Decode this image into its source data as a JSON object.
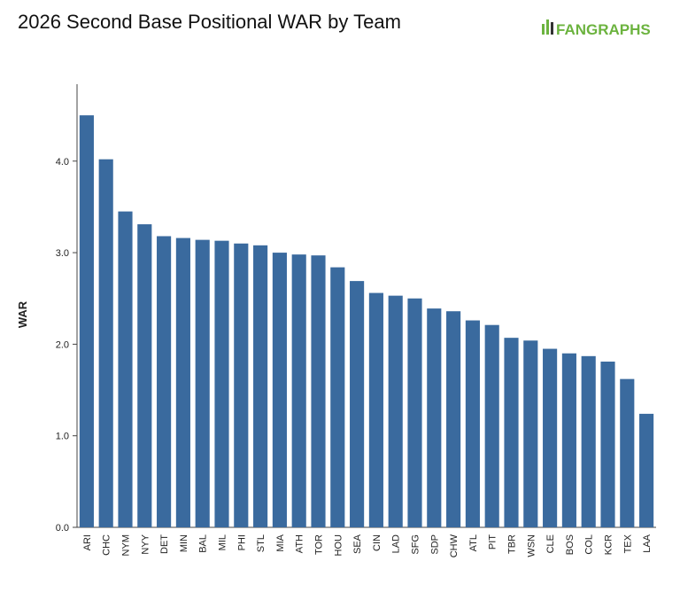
{
  "chart_data": {
    "type": "bar",
    "title": "2026 Second Base Positional WAR by Team",
    "logo": "FANGRAPHS",
    "y_label": "WAR",
    "categories": [
      "ARI",
      "CHC",
      "NYM",
      "NYY",
      "DET",
      "MIN",
      "BAL",
      "MIL",
      "PHI",
      "STL",
      "MIA",
      "ATH",
      "TOR",
      "HOU",
      "SEA",
      "CIN",
      "LAD",
      "SFG",
      "SDP",
      "CHW",
      "ATL",
      "PIT",
      "TBR",
      "WSN",
      "CLE",
      "BOS",
      "COL",
      "KCR",
      "TEX",
      "LAA"
    ],
    "values": [
      4.5,
      4.02,
      3.45,
      3.31,
      3.18,
      3.16,
      3.14,
      3.13,
      3.1,
      3.08,
      3.0,
      2.98,
      2.97,
      2.84,
      2.69,
      2.56,
      2.53,
      2.5,
      2.39,
      2.36,
      2.26,
      2.21,
      2.07,
      2.04,
      1.95,
      1.9,
      1.87,
      1.81,
      1.62,
      1.24
    ],
    "color": "#3a6a9e",
    "ylim": [
      0,
      4.84
    ],
    "yticks": [
      {
        "value": 0,
        "label": "0.0"
      },
      {
        "value": 1,
        "label": "1.0"
      },
      {
        "value": 2,
        "label": "2.0"
      },
      {
        "value": 3,
        "label": "3.0"
      },
      {
        "value": 4,
        "label": "4.0"
      }
    ]
  }
}
